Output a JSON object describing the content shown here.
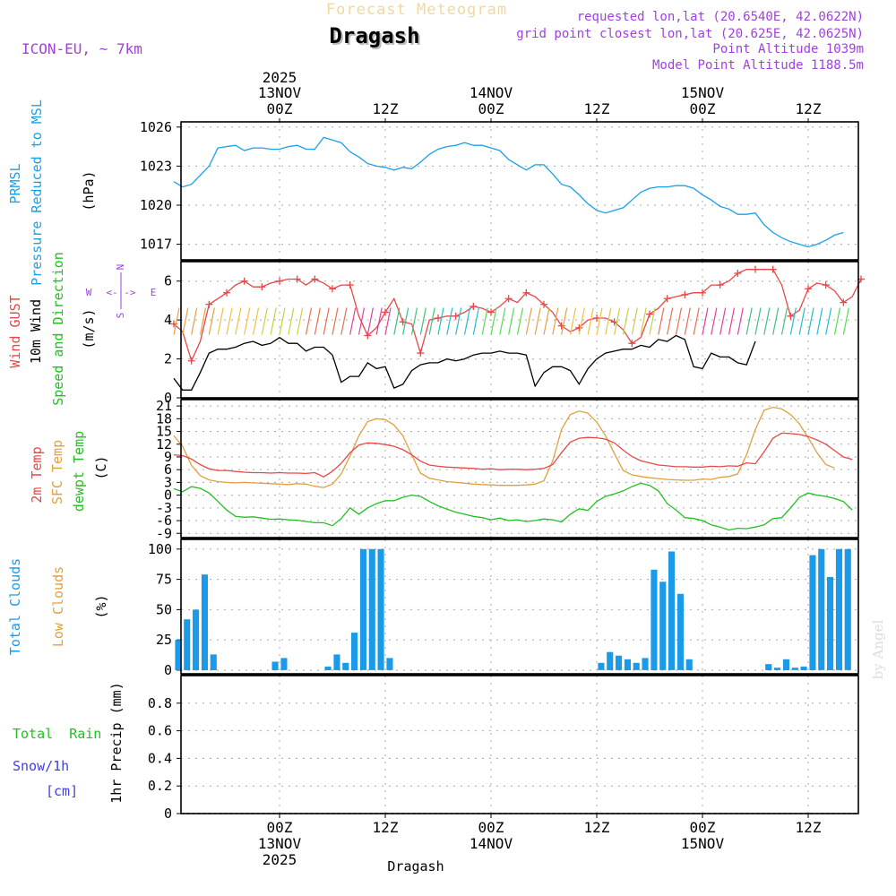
{
  "header": {
    "app_title": "Forecast Meteogram",
    "location": "Dragash",
    "model": "ICON-EU, ~ 7km",
    "requested": "requested lon,lat (20.6540E, 42.0622N)",
    "grid_point": "grid point closest lon,lat (20.625E, 42.0625N)",
    "point_alt": "Point Altitude 1039m",
    "model_alt": "Model Point Altitude 1188.5m",
    "credit": "by Angel",
    "footer_location": "Dragash"
  },
  "colors": {
    "pressure": "#1aa0e8",
    "gust": "#e84848",
    "wind": "#000000",
    "temp": "#e84848",
    "sfc": "#e0a040",
    "dew": "#22c022",
    "clouds": "#1a9ae8",
    "low_clouds": "#e0a040",
    "compass": "#a040e0",
    "total_rain": "#22c022",
    "snow": "#4040e0"
  },
  "time_axis": {
    "top_labels": [
      {
        "l1": "2025",
        "l2": "13NOV",
        "l3": "00Z",
        "t": 12
      },
      {
        "l1": "",
        "l2": "",
        "l3": "12Z",
        "t": 24
      },
      {
        "l1": "",
        "l2": "14NOV",
        "l3": "00Z",
        "t": 36
      },
      {
        "l1": "",
        "l2": "",
        "l3": "12Z",
        "t": 48
      },
      {
        "l1": "",
        "l2": "15NOV",
        "l3": "00Z",
        "t": 60
      },
      {
        "l1": "",
        "l2": "",
        "l3": "12Z",
        "t": 72
      }
    ],
    "bottom_labels": [
      {
        "l1": "00Z",
        "l2": "13NOV",
        "l3": "2025",
        "t": 12
      },
      {
        "l1": "12Z",
        "l2": "",
        "l3": "",
        "t": 24
      },
      {
        "l1": "00Z",
        "l2": "14NOV",
        "l3": "",
        "t": 36
      },
      {
        "l1": "12Z",
        "l2": "",
        "l3": "",
        "t": 48
      },
      {
        "l1": "00Z",
        "l2": "15NOV",
        "l3": "",
        "t": 60
      },
      {
        "l1": "12Z",
        "l2": "",
        "l3": "",
        "t": 72
      }
    ]
  },
  "panel_labels": {
    "pressure": {
      "l1": "PRMSL",
      "l2": "Pressure Reduced to MSL",
      "unit": "(hPa)"
    },
    "wind": {
      "gust": "Wind GUST",
      "wind": "10m Wind",
      "dir": "Speed and Direction",
      "unit": "(m/s)"
    },
    "compass": {
      "n": "N",
      "s": "S",
      "w": "W",
      "e": "E",
      "arrows": "<-|->"
    },
    "temp": {
      "t2m": "2m Temp",
      "sfc": "SFC Temp",
      "dew": "dewpt Temp",
      "unit": "(C)"
    },
    "clouds": {
      "total": "Total Clouds",
      "low": "Low Clouds",
      "unit": "(%)"
    },
    "precip": {
      "rain": "Total  Rain",
      "snow": "Snow/1h",
      "cm": "[cm]",
      "axis": "1hr Precip (mm)"
    }
  },
  "chart_data": [
    {
      "type": "line",
      "title": "PRMSL Pressure Reduced to MSL",
      "ylabel": "(hPa)",
      "ylim": [
        1015.8,
        1026.4
      ],
      "yticks": [
        1017,
        1020,
        1023,
        1026
      ],
      "x_hours": "0-76",
      "series": [
        {
          "name": "PRMSL",
          "values": [
            1021.8,
            1021.4,
            1021.6,
            1022.3,
            1023.0,
            1024.4,
            1024.5,
            1024.6,
            1024.2,
            1024.4,
            1024.4,
            1024.3,
            1024.3,
            1024.5,
            1024.6,
            1024.3,
            1024.3,
            1025.2,
            1025.0,
            1024.8,
            1024.1,
            1023.7,
            1023.2,
            1023.0,
            1022.9,
            1022.7,
            1022.9,
            1022.8,
            1023.3,
            1023.9,
            1024.3,
            1024.5,
            1024.6,
            1024.8,
            1024.6,
            1024.6,
            1024.4,
            1024.2,
            1023.5,
            1023.1,
            1022.7,
            1023.1,
            1023.1,
            1022.4,
            1021.6,
            1021.4,
            1020.8,
            1020.1,
            1019.6,
            1019.4,
            1019.6,
            1019.8,
            1020.4,
            1021.0,
            1021.3,
            1021.4,
            1021.4,
            1021.5,
            1021.5,
            1021.3,
            1020.8,
            1020.4,
            1019.9,
            1019.7,
            1019.3,
            1019.3,
            1019.4,
            1018.5,
            1017.9,
            1017.5,
            1017.2,
            1017.0,
            1016.8,
            1017.0,
            1017.3,
            1017.7,
            1017.9
          ]
        }
      ]
    },
    {
      "type": "line",
      "title": "Wind GUST / 10m Wind Speed and Direction",
      "ylabel": "(m/s)",
      "ylim": [
        0,
        7
      ],
      "yticks": [
        0,
        2,
        4,
        6
      ],
      "series": [
        {
          "name": "Wind GUST",
          "values": [
            3.8,
            3.4,
            1.9,
            2.9,
            4.8,
            5.1,
            5.4,
            5.8,
            6.0,
            5.7,
            5.7,
            5.9,
            6.0,
            6.1,
            6.1,
            5.8,
            6.1,
            5.9,
            5.6,
            5.8,
            5.8,
            4.2,
            3.2,
            3.6,
            4.4,
            5.1,
            3.9,
            3.8,
            2.3,
            4.0,
            4.1,
            4.2,
            4.2,
            4.4,
            4.7,
            4.6,
            4.4,
            4.7,
            5.1,
            4.9,
            5.4,
            5.2,
            4.8,
            4.4,
            3.7,
            3.4,
            3.6,
            4.0,
            4.1,
            4.1,
            3.9,
            3.5,
            2.8,
            3.1,
            4.3,
            4.6,
            5.1,
            5.2,
            5.3,
            5.4,
            5.4,
            5.8,
            5.8,
            6.0,
            6.4,
            6.6,
            6.6,
            6.6,
            6.6,
            5.8,
            4.2,
            4.5,
            5.6,
            5.9,
            5.8,
            5.5,
            4.9,
            5.2,
            6.1
          ]
        },
        {
          "name": "10m Wind",
          "values": [
            1.0,
            0.4,
            0.4,
            1.3,
            2.3,
            2.5,
            2.5,
            2.6,
            2.8,
            2.9,
            2.7,
            2.8,
            3.1,
            2.8,
            2.8,
            2.4,
            2.6,
            2.6,
            2.2,
            0.8,
            1.1,
            1.1,
            1.8,
            1.5,
            1.6,
            0.5,
            0.7,
            1.4,
            1.7,
            1.8,
            1.8,
            2.0,
            1.9,
            2.0,
            2.2,
            2.3,
            2.3,
            2.4,
            2.3,
            2.3,
            2.2,
            0.6,
            1.3,
            1.6,
            1.6,
            1.4,
            0.7,
            1.5,
            2.0,
            2.3,
            2.4,
            2.5,
            2.5,
            2.7,
            2.6,
            3.0,
            2.9,
            3.2,
            3.0,
            1.6,
            1.5,
            2.3,
            2.1,
            2.1,
            1.8,
            1.7,
            2.9
          ]
        }
      ]
    },
    {
      "type": "line",
      "title": "2m Temp / SFC Temp / dewpt Temp",
      "ylabel": "(C)",
      "ylim": [
        -10,
        22.5
      ],
      "yticks": [
        -9,
        -6,
        -3,
        0,
        3,
        6,
        9,
        12,
        15,
        18,
        21
      ],
      "series": [
        {
          "name": "2m Temp",
          "values": [
            9.5,
            9.3,
            8.5,
            7.2,
            6.2,
            5.8,
            5.8,
            5.6,
            5.4,
            5.3,
            5.3,
            5.2,
            5.3,
            5.2,
            5.2,
            5.1,
            5.3,
            4.3,
            5.6,
            7.5,
            10.0,
            11.8,
            12.3,
            12.2,
            11.9,
            11.5,
            10.7,
            9.5,
            8.0,
            7.1,
            6.8,
            6.6,
            6.5,
            6.4,
            6.3,
            6.1,
            6.2,
            6.0,
            6.1,
            6.1,
            6.0,
            6.1,
            6.3,
            7.2,
            10.0,
            12.5,
            13.4,
            13.6,
            13.5,
            13.2,
            12.3,
            10.6,
            9.1,
            8.1,
            7.6,
            7.1,
            6.9,
            6.7,
            6.7,
            6.6,
            6.6,
            6.8,
            6.7,
            6.9,
            6.8,
            7.6,
            7.4,
            10.2,
            13.4,
            14.6,
            14.5,
            14.3,
            13.8,
            13.0,
            12.0,
            10.5,
            9.0,
            8.4
          ]
        },
        {
          "name": "SFC Temp",
          "values": [
            14.0,
            11.5,
            7.0,
            4.6,
            3.6,
            3.2,
            3.0,
            2.9,
            3.0,
            2.9,
            2.8,
            2.7,
            2.6,
            2.5,
            2.7,
            2.6,
            2.1,
            1.8,
            2.6,
            5.0,
            9.2,
            14.0,
            17.3,
            18.0,
            17.8,
            16.5,
            14.0,
            9.5,
            5.2,
            4.0,
            3.6,
            3.2,
            3.0,
            2.8,
            2.6,
            2.5,
            2.4,
            2.3,
            2.3,
            2.3,
            2.4,
            2.6,
            3.4,
            8.0,
            15.5,
            19.0,
            19.8,
            19.3,
            17.2,
            14.0,
            9.8,
            5.8,
            4.8,
            4.4,
            4.1,
            3.9,
            3.7,
            3.6,
            3.5,
            3.5,
            3.8,
            3.7,
            4.2,
            4.4,
            5.0,
            9.5,
            15.5,
            20.0,
            20.7,
            20.3,
            19.0,
            16.8,
            13.5,
            10.0,
            7.2,
            6.4
          ]
        },
        {
          "name": "dewpt Temp",
          "values": [
            1.5,
            0.8,
            2.0,
            1.6,
            0.5,
            -1.5,
            -3.5,
            -5.0,
            -5.2,
            -5.1,
            -5.4,
            -5.7,
            -5.6,
            -5.8,
            -5.9,
            -6.2,
            -6.5,
            -6.5,
            -7.2,
            -5.5,
            -3.0,
            -4.5,
            -3.0,
            -2.0,
            -1.3,
            -1.3,
            -0.5,
            0.0,
            -0.3,
            -1.5,
            -2.5,
            -3.3,
            -4.0,
            -4.5,
            -5.0,
            -5.3,
            -5.8,
            -5.4,
            -6.0,
            -5.8,
            -6.2,
            -6.0,
            -5.6,
            -5.8,
            -6.3,
            -4.5,
            -3.2,
            -3.6,
            -1.5,
            -0.3,
            0.3,
            1.0,
            2.0,
            2.8,
            2.3,
            1.0,
            -2.0,
            -3.5,
            -5.3,
            -5.5,
            -6.0,
            -7.0,
            -7.5,
            -8.2,
            -7.8,
            -7.9,
            -7.5,
            -7.0,
            -5.5,
            -5.3,
            -3.0,
            -0.5,
            0.5,
            0.0,
            -0.3,
            -0.8,
            -1.5,
            -3.5
          ]
        }
      ]
    },
    {
      "type": "bar",
      "title": "Total Clouds / Low Clouds",
      "ylabel": "(%)",
      "ylim": [
        -3,
        108
      ],
      "yticks": [
        0,
        25,
        50,
        75,
        100
      ],
      "series": [
        {
          "name": "Total Clouds",
          "values": [
            25,
            42,
            50,
            79,
            13,
            0,
            0,
            0,
            0,
            0,
            0,
            7,
            10,
            0,
            0,
            0,
            0,
            3,
            13,
            6,
            31,
            100,
            100,
            100,
            10,
            0,
            0,
            0,
            0,
            0,
            0,
            0,
            0,
            0,
            0,
            0,
            0,
            0,
            0,
            0,
            0,
            0,
            0,
            0,
            0,
            0,
            0,
            0,
            6,
            15,
            12,
            9,
            6,
            10,
            83,
            73,
            98,
            63,
            9,
            0,
            0,
            0,
            0,
            0,
            0,
            0,
            0,
            5,
            2,
            9,
            2,
            3,
            95,
            100,
            77,
            100,
            100
          ]
        }
      ]
    },
    {
      "type": "line",
      "title": "Total Rain / Snow/1h",
      "ylabel": "1hr Precip (mm)",
      "ylim": [
        0,
        1.0
      ],
      "yticks": [
        0,
        0.2,
        0.4,
        0.6,
        0.8
      ],
      "series": [
        {
          "name": "Total Rain",
          "values": [
            0
          ]
        },
        {
          "name": "Snow/1h",
          "values": [
            0
          ]
        }
      ]
    }
  ]
}
